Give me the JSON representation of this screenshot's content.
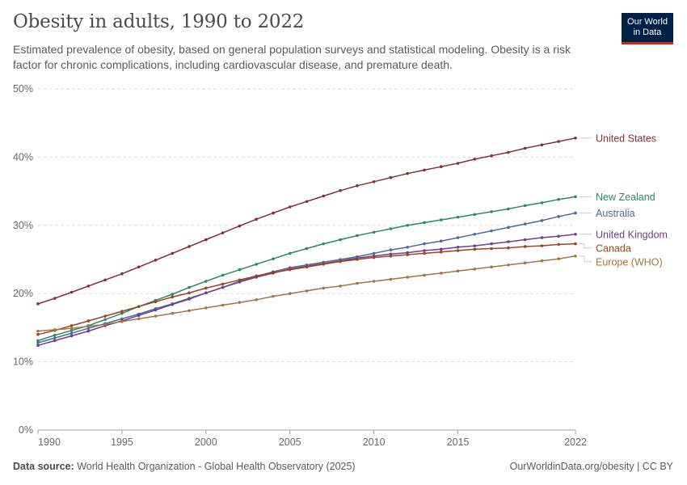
{
  "title": "Obesity in adults, 1990 to 2022",
  "subtitle": "Estimated prevalence of obesity, based on general population surveys and statistical modeling. Obesity is a risk factor for chronic complications, including cardiovascular disease, and premature death.",
  "logo": {
    "line1": "Our World",
    "line2": "in Data"
  },
  "footer": {
    "source_label": "Data source:",
    "source_text": "World Health Organization - Global Health Observatory (2025)",
    "right_text": "OurWorldinData.org/obesity | CC BY"
  },
  "chart_data": {
    "type": "line",
    "x_start": 1990,
    "x_end": 2022,
    "xlim": [
      1990,
      2022
    ],
    "ylim": [
      0,
      50
    ],
    "y_ticks": [
      0,
      10,
      20,
      30,
      40,
      50
    ],
    "y_tick_labels": [
      "0%",
      "10%",
      "20%",
      "30%",
      "40%",
      "50%"
    ],
    "x_ticks": [
      1990,
      1995,
      2000,
      2005,
      2010,
      2015,
      2022
    ],
    "x_tick_labels": [
      "1990",
      "1995",
      "2000",
      "2005",
      "2010",
      "2015",
      "2022"
    ],
    "grid": "horizontal dashed",
    "legend": "right, labels at line ends",
    "series": [
      {
        "name": "United States",
        "color": "#8c2a3a",
        "values": [
          18.5,
          19.3,
          20.2,
          21.1,
          22.0,
          22.9,
          23.9,
          24.9,
          25.9,
          26.9,
          27.9,
          28.9,
          29.9,
          30.9,
          31.8,
          32.7,
          33.5,
          34.3,
          35.1,
          35.8,
          36.4,
          37.0,
          37.6,
          38.1,
          38.6,
          39.1,
          39.7,
          40.2,
          40.7,
          41.3,
          41.8,
          42.3,
          42.8
        ]
      },
      {
        "name": "New Zealand",
        "color": "#2b8a6a",
        "values": [
          13.1,
          13.9,
          14.6,
          15.3,
          16.2,
          17.1,
          18.1,
          19.0,
          19.9,
          20.9,
          21.8,
          22.7,
          23.5,
          24.3,
          25.1,
          25.9,
          26.6,
          27.3,
          27.9,
          28.5,
          29.0,
          29.5,
          30.0,
          30.4,
          30.8,
          31.2,
          31.6,
          32.0,
          32.4,
          32.9,
          33.3,
          33.8,
          34.2
        ]
      },
      {
        "name": "Australia",
        "color": "#4c6a9c",
        "values": [
          12.8,
          13.5,
          14.2,
          14.9,
          15.6,
          16.3,
          17.0,
          17.8,
          18.5,
          19.3,
          20.1,
          20.9,
          21.8,
          22.5,
          23.2,
          23.8,
          24.2,
          24.6,
          25.0,
          25.4,
          25.9,
          26.4,
          26.8,
          27.3,
          27.7,
          28.2,
          28.7,
          29.2,
          29.7,
          30.2,
          30.7,
          31.3,
          31.8
        ]
      },
      {
        "name": "United Kingdom",
        "color": "#6d3e91",
        "values": [
          12.4,
          13.1,
          13.8,
          14.5,
          15.3,
          16.0,
          16.8,
          17.6,
          18.4,
          19.2,
          20.1,
          20.9,
          21.7,
          22.4,
          23.0,
          23.6,
          24.0,
          24.4,
          24.8,
          25.2,
          25.5,
          25.8,
          26.0,
          26.3,
          26.5,
          26.8,
          27.0,
          27.3,
          27.6,
          27.9,
          28.2,
          28.4,
          28.7
        ]
      },
      {
        "name": "Canada",
        "color": "#a2421c",
        "values": [
          14.0,
          14.6,
          15.3,
          16.0,
          16.7,
          17.4,
          18.1,
          18.8,
          19.5,
          20.1,
          20.8,
          21.4,
          22.0,
          22.6,
          23.1,
          23.5,
          23.9,
          24.3,
          24.7,
          25.0,
          25.3,
          25.5,
          25.7,
          25.9,
          26.1,
          26.3,
          26.5,
          26.6,
          26.7,
          26.9,
          27.0,
          27.2,
          27.3
        ]
      },
      {
        "name": "Europe (WHO)",
        "color": "#a47542",
        "values": [
          14.5,
          14.7,
          14.9,
          15.2,
          15.5,
          15.9,
          16.3,
          16.7,
          17.1,
          17.5,
          17.9,
          18.3,
          18.7,
          19.1,
          19.6,
          20.0,
          20.4,
          20.8,
          21.1,
          21.5,
          21.8,
          22.1,
          22.4,
          22.7,
          23.0,
          23.3,
          23.6,
          23.9,
          24.2,
          24.5,
          24.8,
          25.1,
          25.5
        ]
      }
    ]
  }
}
